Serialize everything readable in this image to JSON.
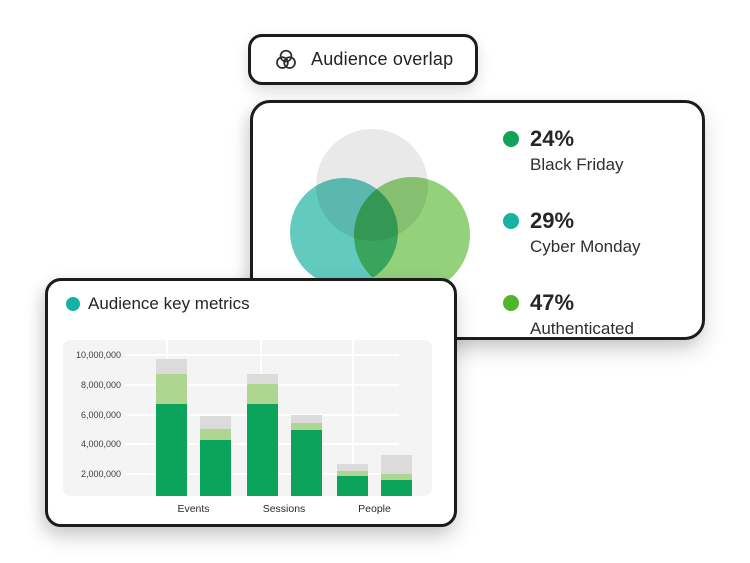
{
  "overlap_chip": {
    "label": "Audience overlap",
    "icon": "venn-diagram-icon"
  },
  "overlap_card": {
    "legend": [
      {
        "value": "24%",
        "label": "Black Friday",
        "color": "#12A359"
      },
      {
        "value": "29%",
        "label": "Cyber Monday",
        "color": "#16B2A2"
      },
      {
        "value": "47%",
        "label": "Authenticated",
        "color": "#51B42A"
      }
    ],
    "venn_circle_colors": [
      "#E9E9E9",
      "#26B5A6",
      "#51B42A"
    ]
  },
  "metrics_card": {
    "title": "Audience key metrics",
    "dot_color": "#16B2A2"
  },
  "chart_data": [
    {
      "type": "pie",
      "style": "venn-overlap",
      "title": "Audience overlap",
      "labels": [
        "Black Friday",
        "Cyber Monday",
        "Authenticated"
      ],
      "values_pct": [
        24,
        29,
        47
      ],
      "colors": [
        "#12A359",
        "#16B2A2",
        "#51B42A"
      ],
      "legend_position": "right"
    },
    {
      "type": "bar",
      "stacked": true,
      "title": "Audience key metrics",
      "categories": [
        "Events",
        "Sessions",
        "People"
      ],
      "bars_per_category": 2,
      "segment_order": [
        "green",
        "light-green",
        "gray"
      ],
      "segment_colors": [
        "#0CA35B",
        "#AFD691",
        "#DBDBDB"
      ],
      "groups": [
        {
          "bars": [
            {
              "segments": [
                6700000,
                2000000,
                1050000
              ]
            },
            {
              "segments": [
                4300000,
                750000,
                850000
              ]
            }
          ]
        },
        {
          "bars": [
            {
              "segments": [
                6700000,
                1350000,
                700000
              ]
            },
            {
              "segments": [
                5000000,
                450000,
                500000
              ]
            }
          ]
        },
        {
          "bars": [
            {
              "segments": [
                1900000,
                350000,
                450000
              ]
            },
            {
              "segments": [
                1650000,
                350000,
                1300000
              ]
            }
          ]
        }
      ],
      "yticks": [
        2000000,
        4000000,
        6000000,
        8000000,
        10000000
      ],
      "ytick_labels": [
        "2,000,000",
        "4,000,000",
        "6,000,000",
        "8,000,000",
        "10,000,000"
      ],
      "ylim": [
        550000,
        11000000
      ],
      "grid": true,
      "legend": "none",
      "xlabel": "",
      "ylabel": ""
    }
  ]
}
